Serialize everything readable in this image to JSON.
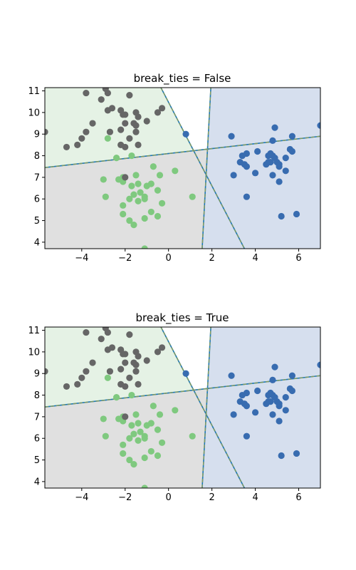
{
  "chart_data": [
    {
      "type": "scatter",
      "title": "break_ties = False",
      "xlabel": "",
      "ylabel": "",
      "xlim": [
        -5.7,
        7.0
      ],
      "ylim": [
        3.7,
        11.15
      ],
      "x_ticks": [
        -4,
        -2,
        0,
        2,
        4,
        6
      ],
      "y_ticks": [
        4,
        5,
        6,
        7,
        8,
        9,
        10,
        11
      ],
      "grid": false,
      "legend": "none",
      "regions": [
        {
          "class": 0,
          "color": "#e5f2e5"
        },
        {
          "class": 1,
          "color": "#d6dfee"
        },
        {
          "class": 2,
          "color": "#e0e0e0"
        }
      ],
      "boundaries": [
        {
          "points": [
            [
              -5.7,
              7.45
            ],
            [
              7.0,
              8.9
            ]
          ]
        },
        {
          "points": [
            [
              1.55,
              3.7
            ],
            [
              1.95,
              11.15
            ]
          ]
        },
        {
          "points": [
            [
              -0.35,
              11.15
            ],
            [
              3.5,
              3.7
            ]
          ]
        }
      ],
      "series": [
        {
          "class": 0,
          "color": "#7fc97f",
          "points": [
            [
              -2.8,
              8.8
            ],
            [
              -2.4,
              7.9
            ],
            [
              -1.7,
              8.0
            ],
            [
              -2.1,
              7.0
            ],
            [
              -1.5,
              7.1
            ],
            [
              -0.7,
              7.5
            ],
            [
              -0.4,
              7.1
            ],
            [
              0.3,
              7.3
            ],
            [
              -3.0,
              6.9
            ],
            [
              -2.3,
              6.9
            ],
            [
              -2.1,
              6.8
            ],
            [
              -1.7,
              6.6
            ],
            [
              -1.4,
              6.7
            ],
            [
              -1.0,
              6.6
            ],
            [
              -0.8,
              6.7
            ],
            [
              -2.9,
              6.1
            ],
            [
              -1.6,
              6.2
            ],
            [
              -1.3,
              6.3
            ],
            [
              -1.8,
              6.0
            ],
            [
              -1.1,
              6.1
            ],
            [
              -0.5,
              6.4
            ],
            [
              -2.1,
              5.7
            ],
            [
              -1.4,
              5.9
            ],
            [
              -1.1,
              6.0
            ],
            [
              -2.1,
              5.3
            ],
            [
              -1.8,
              5.0
            ],
            [
              -1.1,
              5.1
            ],
            [
              -0.8,
              5.4
            ],
            [
              -0.5,
              5.2
            ],
            [
              -0.3,
              5.8
            ],
            [
              -1.6,
              4.8
            ],
            [
              1.1,
              6.1
            ],
            [
              -1.1,
              3.7
            ]
          ]
        },
        {
          "class": 1,
          "color": "#386cb0",
          "points": [
            [
              0.8,
              9.0
            ],
            [
              2.9,
              8.9
            ],
            [
              3.3,
              7.7
            ],
            [
              3.4,
              8.0
            ],
            [
              3.6,
              8.1
            ],
            [
              3.5,
              7.6
            ],
            [
              3.6,
              7.5
            ],
            [
              3.0,
              7.1
            ],
            [
              3.6,
              6.1
            ],
            [
              4.0,
              7.2
            ],
            [
              4.1,
              8.2
            ],
            [
              4.5,
              7.6
            ],
            [
              4.6,
              8.0
            ],
            [
              4.7,
              8.1
            ],
            [
              4.8,
              8.0
            ],
            [
              4.9,
              7.9
            ],
            [
              4.7,
              7.7
            ],
            [
              4.6,
              7.7
            ],
            [
              4.8,
              8.7
            ],
            [
              4.9,
              9.3
            ],
            [
              5.0,
              7.7
            ],
            [
              5.1,
              7.6
            ],
            [
              5.1,
              7.5
            ],
            [
              4.8,
              7.1
            ],
            [
              5.1,
              6.8
            ],
            [
              5.4,
              7.3
            ],
            [
              5.4,
              7.9
            ],
            [
              5.6,
              8.3
            ],
            [
              5.7,
              8.2
            ],
            [
              5.7,
              8.9
            ],
            [
              5.2,
              5.2
            ],
            [
              5.9,
              5.3
            ],
            [
              7.0,
              9.4
            ]
          ]
        },
        {
          "class": 2,
          "color": "#666666",
          "points": [
            [
              -5.7,
              9.1
            ],
            [
              -4.7,
              8.4
            ],
            [
              -4.2,
              8.5
            ],
            [
              -4.0,
              8.8
            ],
            [
              -3.8,
              9.1
            ],
            [
              -3.5,
              9.5
            ],
            [
              -3.8,
              10.9
            ],
            [
              -3.1,
              10.6
            ],
            [
              -2.8,
              10.9
            ],
            [
              -2.9,
              11.1
            ],
            [
              -2.8,
              10.1
            ],
            [
              -2.6,
              10.2
            ],
            [
              -2.7,
              9.1
            ],
            [
              -2.2,
              10.1
            ],
            [
              -2.1,
              9.9
            ],
            [
              -2.0,
              9.9
            ],
            [
              -1.8,
              10.8
            ],
            [
              -1.6,
              9.5
            ],
            [
              -1.5,
              10.0
            ],
            [
              -1.4,
              9.8
            ],
            [
              -1.5,
              9.4
            ],
            [
              -1.5,
              9.1
            ],
            [
              -1.0,
              9.6
            ],
            [
              -0.5,
              10.0
            ],
            [
              -0.3,
              10.2
            ],
            [
              -2.2,
              8.5
            ],
            [
              -2.0,
              8.4
            ],
            [
              -1.8,
              8.8
            ],
            [
              -2.2,
              9.2
            ],
            [
              -1.4,
              8.5
            ],
            [
              -2.0,
              9.5
            ],
            [
              -2.0,
              7.0
            ]
          ]
        }
      ]
    },
    {
      "type": "scatter",
      "title": "break_ties = True",
      "xlabel": "",
      "ylabel": "",
      "xlim": [
        -5.7,
        7.0
      ],
      "ylim": [
        3.7,
        11.15
      ],
      "x_ticks": [
        -4,
        -2,
        0,
        2,
        4,
        6
      ],
      "y_ticks": [
        4,
        5,
        6,
        7,
        8,
        9,
        10,
        11
      ],
      "grid": false,
      "legend": "none",
      "regions": [
        {
          "class": 0,
          "color": "#e5f2e5"
        },
        {
          "class": 1,
          "color": "#d6dfee"
        },
        {
          "class": 2,
          "color": "#e0e0e0"
        }
      ],
      "boundaries": [
        {
          "points": [
            [
              -5.7,
              7.45
            ],
            [
              7.0,
              8.9
            ]
          ]
        },
        {
          "points": [
            [
              1.55,
              3.7
            ],
            [
              1.95,
              11.15
            ]
          ]
        },
        {
          "points": [
            [
              -0.35,
              11.15
            ],
            [
              3.5,
              3.7
            ]
          ]
        }
      ],
      "series": [
        {
          "class": 0,
          "color": "#7fc97f",
          "points": [
            [
              -2.8,
              8.8
            ],
            [
              -2.4,
              7.9
            ],
            [
              -1.7,
              8.0
            ],
            [
              -2.1,
              7.0
            ],
            [
              -1.5,
              7.1
            ],
            [
              -0.7,
              7.5
            ],
            [
              -0.4,
              7.1
            ],
            [
              0.3,
              7.3
            ],
            [
              -3.0,
              6.9
            ],
            [
              -2.3,
              6.9
            ],
            [
              -2.1,
              6.8
            ],
            [
              -1.7,
              6.6
            ],
            [
              -1.4,
              6.7
            ],
            [
              -1.0,
              6.6
            ],
            [
              -0.8,
              6.7
            ],
            [
              -2.9,
              6.1
            ],
            [
              -1.6,
              6.2
            ],
            [
              -1.3,
              6.3
            ],
            [
              -1.8,
              6.0
            ],
            [
              -1.1,
              6.1
            ],
            [
              -0.5,
              6.4
            ],
            [
              -2.1,
              5.7
            ],
            [
              -1.4,
              5.9
            ],
            [
              -1.1,
              6.0
            ],
            [
              -2.1,
              5.3
            ],
            [
              -1.8,
              5.0
            ],
            [
              -1.1,
              5.1
            ],
            [
              -0.8,
              5.4
            ],
            [
              -0.5,
              5.2
            ],
            [
              -0.3,
              5.8
            ],
            [
              -1.6,
              4.8
            ],
            [
              1.1,
              6.1
            ],
            [
              -1.1,
              3.7
            ]
          ]
        },
        {
          "class": 1,
          "color": "#386cb0",
          "points": [
            [
              0.8,
              9.0
            ],
            [
              2.9,
              8.9
            ],
            [
              3.3,
              7.7
            ],
            [
              3.4,
              8.0
            ],
            [
              3.6,
              8.1
            ],
            [
              3.5,
              7.6
            ],
            [
              3.6,
              7.5
            ],
            [
              3.0,
              7.1
            ],
            [
              3.6,
              6.1
            ],
            [
              4.0,
              7.2
            ],
            [
              4.1,
              8.2
            ],
            [
              4.5,
              7.6
            ],
            [
              4.6,
              8.0
            ],
            [
              4.7,
              8.1
            ],
            [
              4.8,
              8.0
            ],
            [
              4.9,
              7.9
            ],
            [
              4.7,
              7.7
            ],
            [
              4.6,
              7.7
            ],
            [
              4.8,
              8.7
            ],
            [
              4.9,
              9.3
            ],
            [
              5.0,
              7.7
            ],
            [
              5.1,
              7.6
            ],
            [
              5.1,
              7.5
            ],
            [
              4.8,
              7.1
            ],
            [
              5.1,
              6.8
            ],
            [
              5.4,
              7.3
            ],
            [
              5.4,
              7.9
            ],
            [
              5.6,
              8.3
            ],
            [
              5.7,
              8.2
            ],
            [
              5.7,
              8.9
            ],
            [
              5.2,
              5.2
            ],
            [
              5.9,
              5.3
            ],
            [
              7.0,
              9.4
            ]
          ]
        },
        {
          "class": 2,
          "color": "#666666",
          "points": [
            [
              -5.7,
              9.1
            ],
            [
              -4.7,
              8.4
            ],
            [
              -4.2,
              8.5
            ],
            [
              -4.0,
              8.8
            ],
            [
              -3.8,
              9.1
            ],
            [
              -3.5,
              9.5
            ],
            [
              -3.8,
              10.9
            ],
            [
              -3.1,
              10.6
            ],
            [
              -2.8,
              10.9
            ],
            [
              -2.9,
              11.1
            ],
            [
              -2.8,
              10.1
            ],
            [
              -2.6,
              10.2
            ],
            [
              -2.7,
              9.1
            ],
            [
              -2.2,
              10.1
            ],
            [
              -2.1,
              9.9
            ],
            [
              -2.0,
              9.9
            ],
            [
              -1.8,
              10.8
            ],
            [
              -1.6,
              9.5
            ],
            [
              -1.5,
              10.0
            ],
            [
              -1.4,
              9.8
            ],
            [
              -1.5,
              9.4
            ],
            [
              -1.5,
              9.1
            ],
            [
              -1.0,
              9.6
            ],
            [
              -0.5,
              10.0
            ],
            [
              -0.3,
              10.2
            ],
            [
              -2.2,
              8.5
            ],
            [
              -2.0,
              8.4
            ],
            [
              -1.8,
              8.8
            ],
            [
              -2.2,
              9.2
            ],
            [
              -1.4,
              8.5
            ],
            [
              -2.0,
              9.5
            ],
            [
              -2.0,
              7.0
            ]
          ]
        }
      ]
    }
  ]
}
